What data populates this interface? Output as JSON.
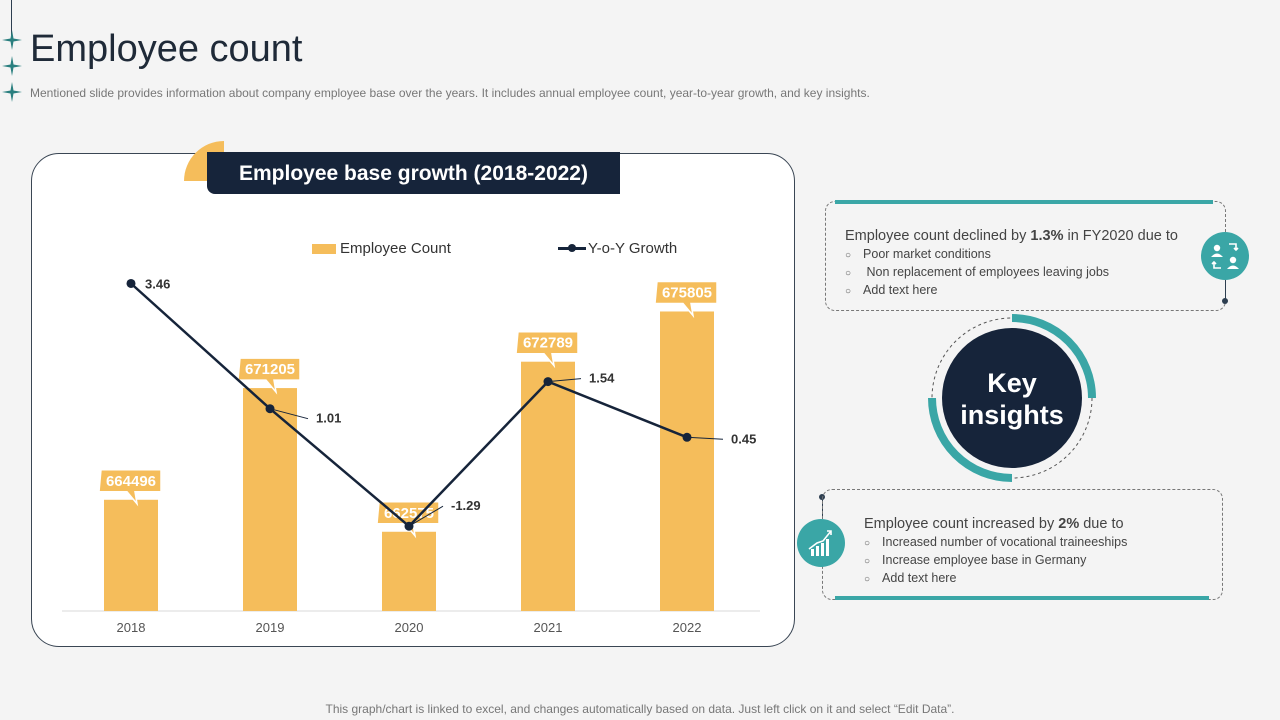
{
  "header": {
    "title": "Employee count",
    "subtitle": "Mentioned slide provides information about company employee base over the years. It includes annual employee count, year-to-year growth, and key insights."
  },
  "chart_data": {
    "type": "bar",
    "title": "Employee base growth (2018-2022)",
    "categories": [
      "2018",
      "2019",
      "2020",
      "2021",
      "2022"
    ],
    "series": [
      {
        "name": "Employee Count",
        "type": "bar",
        "values": [
          664496,
          671205,
          662575,
          672789,
          675805
        ],
        "color": "#f5bd5b"
      },
      {
        "name": "Y-o-Y Growth",
        "type": "line",
        "values": [
          3.46,
          1.01,
          -1.29,
          1.54,
          0.45
        ],
        "color": "#16243a"
      }
    ],
    "value_labels": {
      "bar": [
        "664496",
        "671205",
        "662575",
        "672789",
        "675805"
      ],
      "line": [
        "3.46",
        "1.01",
        "-1.29",
        "1.54",
        "0.45"
      ]
    },
    "legend": "top",
    "grid": false
  },
  "insights": {
    "center_line1": "Key",
    "center_line2": "insights",
    "top": {
      "head_pre": "Employee count declined by ",
      "head_bold": "1.3%",
      "head_post": " in FY2020 due to",
      "items": [
        "Poor market conditions",
        " Non replacement of employees leaving jobs",
        "Add text here"
      ],
      "icon": "people-exchange-icon"
    },
    "bottom": {
      "head_pre": "Employee count increased by ",
      "head_bold": "2%",
      "head_post": " due to",
      "items": [
        "Increased number of vocational traineeships",
        "Increase employee base in Germany",
        "Add text here"
      ],
      "icon": "growth-chart-icon"
    }
  },
  "footer": "This graph/chart is linked to excel, and changes automatically based on data. Just left click on it and select “Edit Data”.",
  "colors": {
    "accent": "#3aa6a6",
    "bar": "#f5bd5b",
    "dark": "#16243a"
  }
}
